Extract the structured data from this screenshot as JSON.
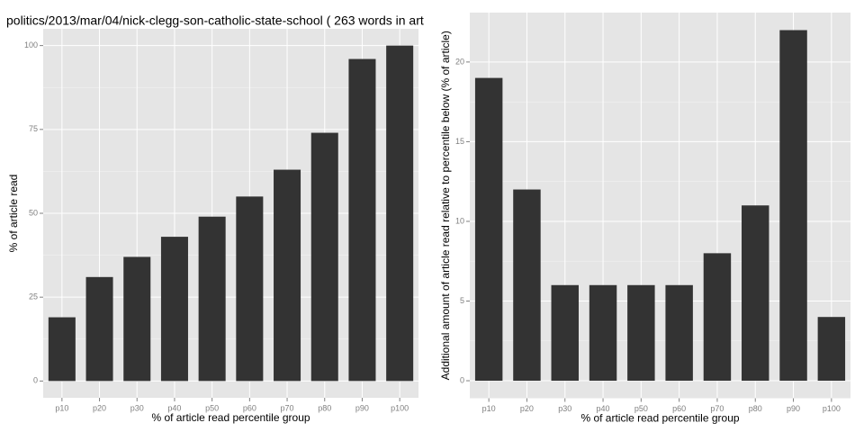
{
  "chart_data": [
    {
      "type": "bar",
      "title": "politics/2013/mar/04/nick-clegg-son-catholic-state-school ( 263 words in art",
      "x_label": "% of article read percentile group",
      "y_label": "% of article read",
      "categories": [
        "p10",
        "p20",
        "p30",
        "p40",
        "p50",
        "p60",
        "p70",
        "p80",
        "p90",
        "p100"
      ],
      "values": [
        19,
        31,
        37,
        43,
        49,
        55,
        63,
        74,
        96,
        100
      ],
      "color": "#333333",
      "ylim": [
        -5,
        105
      ],
      "yticks": [
        0,
        25,
        50,
        75,
        100
      ],
      "grid": true
    },
    {
      "type": "bar",
      "x_label": "% of article read percentile group",
      "y_label": "Additional amount of article read relative to percentile below (% of article)",
      "categories": [
        "p10",
        "p20",
        "p30",
        "p40",
        "p50",
        "p60",
        "p70",
        "p80",
        "p90",
        "p100"
      ],
      "values": [
        19,
        12,
        6,
        6,
        6,
        6,
        8,
        11,
        22,
        4
      ],
      "color": "#333333",
      "ylim": [
        -1.1,
        23.1
      ],
      "yticks": [
        0,
        5,
        10,
        15,
        20
      ],
      "grid": true
    }
  ]
}
